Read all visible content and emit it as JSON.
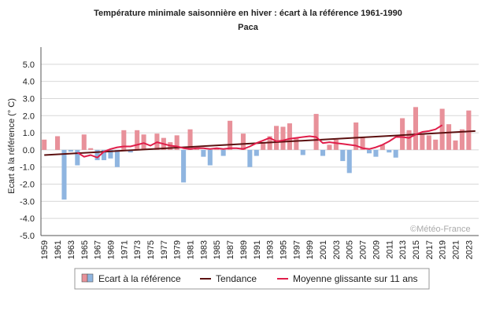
{
  "chart_data": {
    "type": "bar",
    "title": "Température minimale saisonnière en hiver : écart à la référence 1961-1990",
    "subtitle": "Paca",
    "ylabel": "Ecart à la référence (° C)",
    "xlabel": "",
    "ylim": [
      -5.0,
      6.0
    ],
    "yticks": [
      "5.0",
      "4.0",
      "3.0",
      "2.0",
      "1.0",
      "0.0",
      "-1.0",
      "-2.0",
      "-3.0",
      "-4.0",
      "-5.0"
    ],
    "xticks": [
      "1959",
      "1961",
      "1963",
      "1965",
      "1967",
      "1969",
      "1971",
      "1973",
      "1975",
      "1977",
      "1979",
      "1981",
      "1983",
      "1985",
      "1987",
      "1989",
      "1991",
      "1993",
      "1995",
      "1997",
      "1999",
      "2001",
      "2003",
      "2005",
      "2007",
      "2009",
      "2011",
      "2013",
      "2015",
      "2017",
      "2019",
      "2021",
      "2023"
    ],
    "years": [
      1959,
      1960,
      1961,
      1962,
      1963,
      1964,
      1965,
      1966,
      1967,
      1968,
      1969,
      1970,
      1971,
      1972,
      1973,
      1974,
      1975,
      1976,
      1977,
      1978,
      1979,
      1980,
      1981,
      1982,
      1983,
      1984,
      1985,
      1986,
      1987,
      1988,
      1989,
      1990,
      1991,
      1992,
      1993,
      1994,
      1995,
      1996,
      1997,
      1998,
      1999,
      2000,
      2001,
      2002,
      2003,
      2004,
      2005,
      2006,
      2007,
      2008,
      2009,
      2010,
      2011,
      2012,
      2013,
      2014,
      2015,
      2016,
      2017,
      2018,
      2019,
      2020,
      2021,
      2022,
      2023,
      2024
    ],
    "values": [
      0.6,
      0.0,
      0.8,
      -2.9,
      -0.1,
      -0.9,
      0.9,
      0.1,
      -0.6,
      -0.6,
      -0.5,
      -1.0,
      1.15,
      -0.15,
      1.15,
      0.9,
      0.05,
      0.95,
      0.7,
      0.45,
      0.85,
      -1.9,
      1.2,
      0.05,
      -0.4,
      -0.9,
      0.1,
      -0.35,
      1.7,
      0.0,
      0.95,
      -1.0,
      -0.35,
      0.4,
      0.8,
      1.4,
      1.35,
      1.55,
      0.7,
      -0.3,
      0.0,
      2.1,
      -0.35,
      0.3,
      0.6,
      -0.65,
      -1.35,
      1.6,
      0.75,
      -0.2,
      -0.4,
      0.3,
      -0.15,
      -0.45,
      1.85,
      1.15,
      2.5,
      0.95,
      0.85,
      0.6,
      2.4,
      1.5,
      0.55,
      1.2,
      2.3,
      0.0
    ],
    "trend": {
      "start": [
        1959,
        -0.3
      ],
      "end": [
        2024,
        1.1
      ]
    },
    "moving_average": {
      "years": [
        1964,
        1965,
        1966,
        1967,
        1968,
        1969,
        1970,
        1971,
        1972,
        1973,
        1974,
        1975,
        1976,
        1977,
        1978,
        1979,
        1980,
        1981,
        1982,
        1983,
        1984,
        1985,
        1986,
        1987,
        1988,
        1989,
        1990,
        1991,
        1992,
        1993,
        1994,
        1995,
        1996,
        1997,
        1998,
        1999,
        2000,
        2001,
        2002,
        2003,
        2004,
        2005,
        2006,
        2007,
        2008,
        2009,
        2010,
        2011,
        2012,
        2013,
        2014,
        2015,
        2016,
        2017,
        2018,
        2019
      ],
      "values": [
        -0.15,
        -0.4,
        -0.3,
        -0.45,
        -0.1,
        0.05,
        0.15,
        0.2,
        0.2,
        0.3,
        0.4,
        0.25,
        0.45,
        0.35,
        0.25,
        0.2,
        0.1,
        0.05,
        0.1,
        0.1,
        0.05,
        0.1,
        0.05,
        0.1,
        0.1,
        0.05,
        0.2,
        0.4,
        0.55,
        0.7,
        0.5,
        0.55,
        0.65,
        0.7,
        0.75,
        0.8,
        0.75,
        0.4,
        0.45,
        0.4,
        0.35,
        0.3,
        0.25,
        0.1,
        0.05,
        0.15,
        0.3,
        0.5,
        0.75,
        0.75,
        0.7,
        0.9,
        1.05,
        1.1,
        1.2,
        1.45
      ]
    },
    "legend": [
      "Ecart à la référence",
      "Tendance",
      "Moyenne glissante sur 11 ans"
    ],
    "legend_position": "bottom",
    "grid": true,
    "watermark": "©Météo-France",
    "colors": {
      "positive": "#e8919a",
      "negative": "#8fb5e0",
      "trend": "#5c1010",
      "moving_average": "#e01e4a",
      "grid": "#d8d8d8"
    }
  }
}
